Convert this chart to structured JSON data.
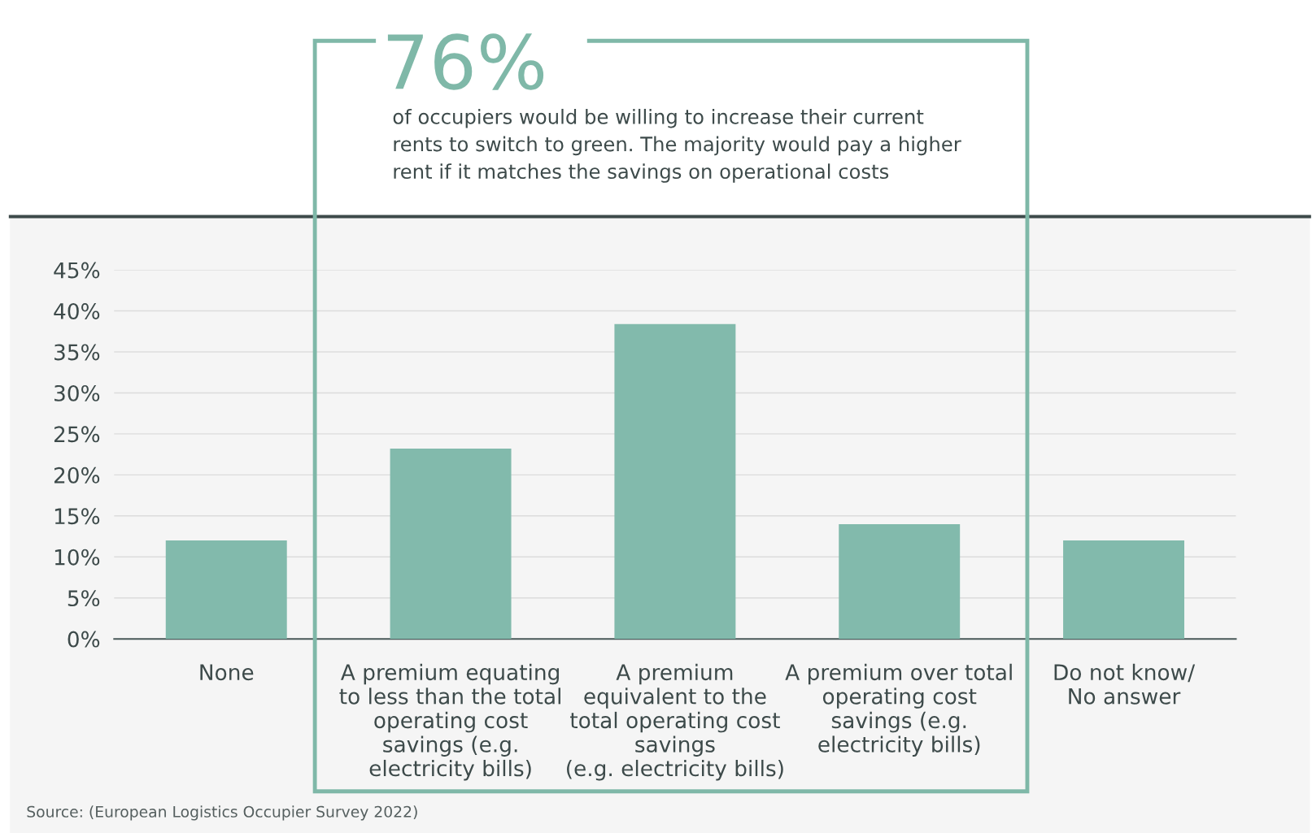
{
  "chart_data": {
    "type": "bar",
    "categories": [
      "None",
      "A premium equating\nto less than the total\noperating cost\nsavings (e.g.\nelectricity bills)",
      "A premium\nequivalent to the\ntotal operating cost\nsavings\n(e.g. electricity bills)",
      "A premium over total\noperating cost\nsavings (e.g.\nelectricity bills)",
      "Do not know/\nNo answer"
    ],
    "values": [
      12,
      23.2,
      38.4,
      14,
      12
    ],
    "color": "#82baac",
    "ylim": [
      0,
      45
    ],
    "yticks": [
      {
        "value": 0,
        "label": "0%"
      },
      {
        "value": 5,
        "label": "5%"
      },
      {
        "value": 10,
        "label": "10%"
      },
      {
        "value": 15,
        "label": "15%"
      },
      {
        "value": 20,
        "label": "20%"
      },
      {
        "value": 25,
        "label": "25%"
      },
      {
        "value": 30,
        "label": "30%"
      },
      {
        "value": 35,
        "label": "35%"
      },
      {
        "value": 40,
        "label": "40%"
      },
      {
        "value": 45,
        "label": "45%"
      }
    ],
    "grid": "y",
    "annotations": [
      "76%",
      "of occupiers would be willing to increase their current\nrents to switch to green. The majority would pay a higher\nrent if it matches the savings on operational costs",
      "Source: (European Logistics Occupier Survey 2022)"
    ]
  }
}
